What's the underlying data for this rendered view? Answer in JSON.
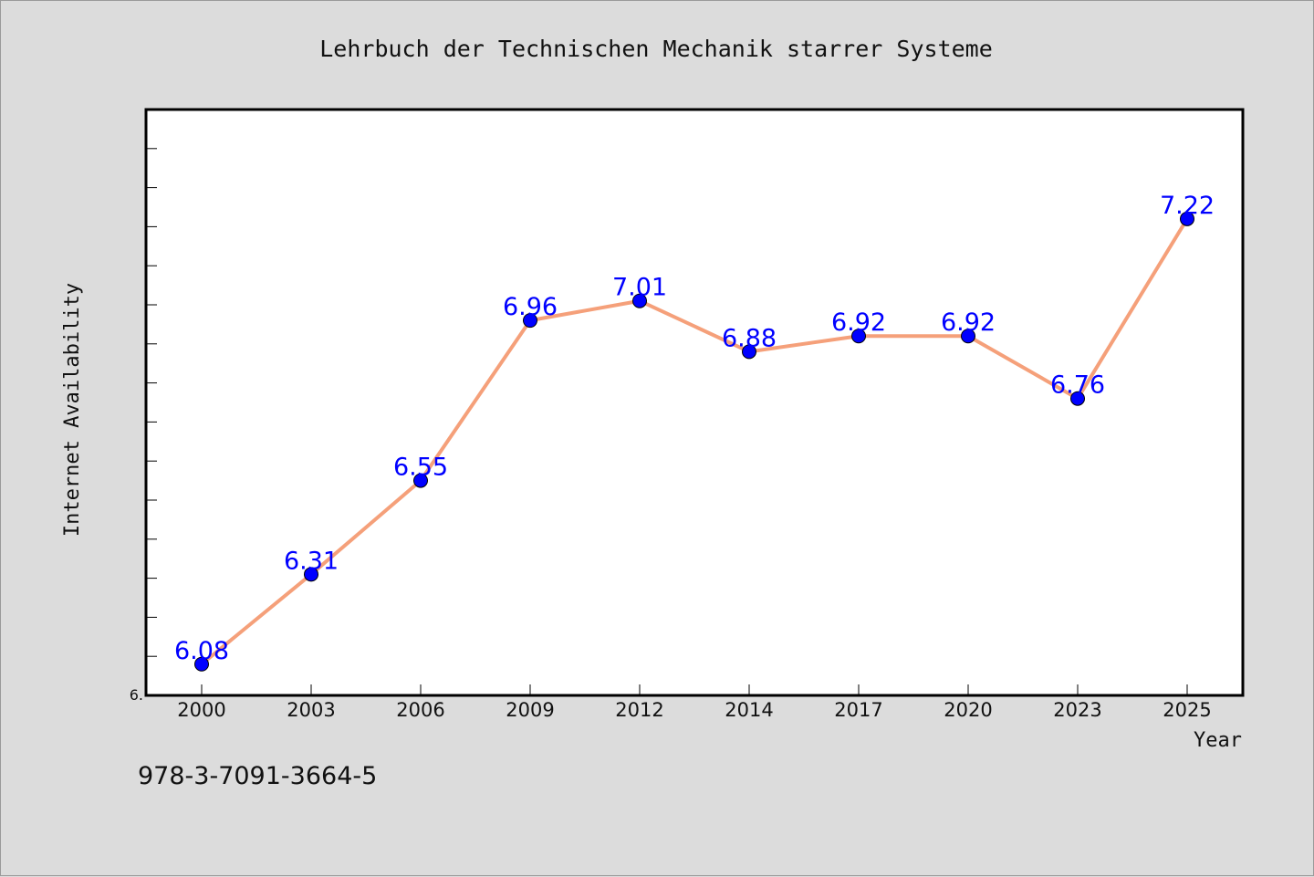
{
  "chart_data": {
    "type": "line",
    "title": "Lehrbuch der Technischen Mechanik starrer Systeme",
    "xlabel": "Year",
    "ylabel": "Internet Availability",
    "categories": [
      "2000",
      "2003",
      "2006",
      "2009",
      "2012",
      "2014",
      "2017",
      "2020",
      "2023",
      "2025"
    ],
    "series": [
      {
        "values": [
          6.08,
          6.31,
          6.55,
          6.96,
          7.01,
          6.88,
          6.92,
          6.92,
          6.76,
          7.22
        ],
        "labels": [
          "6.08",
          "6.31",
          "6.55",
          "6.96",
          "7.01",
          "6.88",
          "6.92",
          "6.92",
          "6.76",
          "7.22"
        ]
      }
    ],
    "ylim": [
      6.0,
      7.5
    ],
    "y_tick_label": "6.",
    "grid": false,
    "legend": "none",
    "colors": {
      "line": "#f5a07a",
      "marker": "#0000ff",
      "data_label": "#0000ff",
      "plot_background": "#ffffff",
      "page_background": "#dcdcdc"
    }
  },
  "footer": {
    "isbn": "978-3-7091-3664-5"
  }
}
